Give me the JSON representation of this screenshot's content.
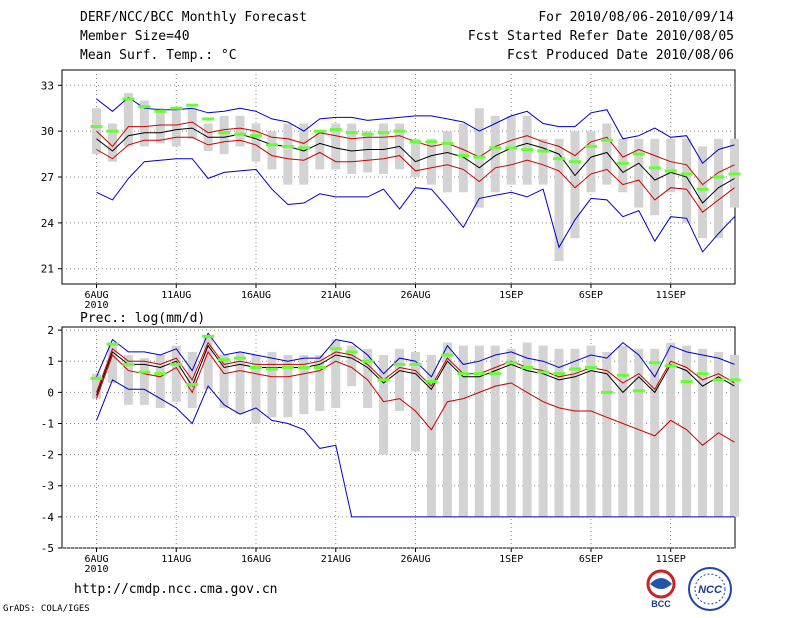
{
  "header": {
    "title": "DERF/NCC/BCC Monthly Forecast",
    "member_size": "Member Size=40",
    "variable": "Mean Surf. Temp.: °C",
    "period": "For 2010/08/06-2010/09/14",
    "started": "Fcst Started Refer Date 2010/08/05",
    "produced": "Fcst Produced Date 2010/08/06"
  },
  "footer": {
    "url": "http://cmdp.ncc.cma.gov.cn",
    "credit": "GrADS: COLA/IGES",
    "logo_bcc": "BCC",
    "logo_ncc": "NCC"
  },
  "colors": {
    "ensemble_mean": "#000000",
    "spread": "#cc0000",
    "extreme": "#0000cc",
    "bar": "#d3d3d3",
    "observed": "#66ff33"
  },
  "chart_data": [
    {
      "type": "line",
      "title": "Mean Surf. Temp.: °C",
      "x_start": "2010-08-06",
      "x_ticks": [
        "6AUG",
        "11AUG",
        "16AUG",
        "21AUG",
        "26AUG",
        "1SEP",
        "6SEP",
        "11SEP"
      ],
      "x_tick_days": [
        0,
        5,
        10,
        15,
        20,
        26,
        31,
        36
      ],
      "x_year": "2010",
      "ylim": [
        20,
        34
      ],
      "y_ticks": [
        21,
        24,
        27,
        30,
        33
      ],
      "series": [
        {
          "name": "max",
          "color": "#0000cc",
          "values": [
            32.1,
            31.3,
            32.2,
            31.5,
            31.4,
            31.4,
            31.5,
            31.2,
            31.3,
            31.5,
            31.3,
            30.8,
            30.6,
            30.0,
            30.8,
            30.9,
            30.9,
            30.7,
            30.8,
            30.9,
            31.0,
            31.0,
            30.8,
            30.6,
            30.0,
            30.5,
            31.0,
            31.3,
            30.5,
            30.3,
            30.3,
            31.2,
            31.4,
            29.5,
            29.7,
            30.2,
            29.6,
            29.7,
            27.9,
            28.8,
            29.1
          ]
        },
        {
          "name": "upper",
          "color": "#cc0000",
          "values": [
            30.0,
            29.0,
            30.3,
            30.3,
            30.4,
            30.4,
            30.6,
            29.9,
            30.1,
            30.2,
            30.0,
            29.6,
            29.5,
            29.2,
            29.9,
            29.7,
            29.5,
            29.6,
            29.6,
            29.7,
            29.3,
            29.0,
            29.2,
            28.8,
            28.3,
            29.0,
            29.4,
            29.7,
            29.3,
            29.0,
            28.4,
            29.3,
            29.6,
            28.3,
            28.8,
            28.4,
            28.0,
            27.8,
            26.5,
            27.3,
            27.8
          ]
        },
        {
          "name": "mean",
          "color": "#000000",
          "values": [
            29.5,
            28.7,
            29.7,
            29.9,
            29.9,
            30.1,
            30.2,
            29.6,
            29.6,
            29.8,
            29.5,
            29.1,
            29.0,
            28.7,
            29.2,
            28.9,
            28.7,
            28.8,
            28.8,
            29.0,
            28.0,
            28.4,
            28.6,
            28.3,
            27.6,
            28.4,
            28.9,
            29.2,
            28.9,
            28.5,
            27.1,
            28.3,
            28.6,
            27.3,
            27.9,
            26.8,
            27.3,
            27.0,
            25.3,
            26.3,
            26.9
          ]
        },
        {
          "name": "lower",
          "color": "#cc0000",
          "values": [
            28.8,
            28.2,
            29.1,
            29.4,
            29.4,
            29.6,
            29.6,
            29.1,
            29.3,
            29.4,
            29.1,
            28.4,
            28.2,
            28.1,
            28.6,
            28.0,
            28.0,
            28.1,
            28.2,
            28.4,
            27.4,
            27.6,
            27.8,
            27.5,
            26.7,
            27.6,
            27.8,
            28.1,
            27.8,
            27.4,
            26.3,
            27.2,
            27.5,
            26.5,
            26.8,
            25.5,
            26.3,
            26.2,
            24.7,
            25.5,
            26.3
          ]
        },
        {
          "name": "min",
          "color": "#0000cc",
          "values": [
            26.0,
            25.5,
            26.9,
            28.0,
            28.1,
            28.2,
            28.2,
            26.9,
            27.3,
            27.4,
            27.5,
            26.2,
            25.2,
            25.3,
            25.9,
            25.7,
            25.7,
            25.7,
            26.2,
            24.9,
            26.3,
            26.2,
            25.0,
            23.7,
            25.6,
            25.8,
            26.0,
            25.7,
            26.2,
            22.4,
            24.2,
            25.6,
            25.5,
            24.4,
            24.8,
            22.8,
            24.4,
            24.3,
            22.1,
            23.3,
            24.4
          ]
        }
      ],
      "bars": {
        "low": [
          28.5,
          28.0,
          29.0,
          29.0,
          29.2,
          29.0,
          29.5,
          28.7,
          28.5,
          29.0,
          28.0,
          27.5,
          26.5,
          26.5,
          27.5,
          27.5,
          27.2,
          27.3,
          27.2,
          27.5,
          27.0,
          26.5,
          26.0,
          26.0,
          25.0,
          26.0,
          26.5,
          26.5,
          26.5,
          21.5,
          23.0,
          26.0,
          26.5,
          26.0,
          25.0,
          24.5,
          26.0,
          24.0,
          23.0,
          23.0,
          25.0
        ],
        "high": [
          31.5,
          30.5,
          32.5,
          32.0,
          31.5,
          31.5,
          31.5,
          30.5,
          31.0,
          31.0,
          30.5,
          30.0,
          30.5,
          30.5,
          30.0,
          30.5,
          30.5,
          30.0,
          30.5,
          30.5,
          29.5,
          29.5,
          30.0,
          30.5,
          31.5,
          31.0,
          31.0,
          31.0,
          29.5,
          29.5,
          30.0,
          30.0,
          30.5,
          29.5,
          29.5,
          29.5,
          29.5,
          29.5,
          29.0,
          29.5,
          29.5
        ]
      },
      "observed": [
        30.3,
        30.0,
        32.1,
        31.6,
        31.3,
        31.5,
        31.7,
        30.8,
        29.9,
        29.8,
        29.7,
        29.1,
        29.0,
        28.9,
        30.0,
        30.1,
        29.9,
        29.8,
        29.9,
        30.0,
        29.3,
        29.3,
        29.2,
        28.4,
        28.3,
        28.9,
        28.9,
        28.8,
        28.7,
        28.2,
        28.0,
        29.0,
        29.4,
        27.9,
        28.5,
        27.6,
        27.4,
        27.2,
        26.2,
        27.0,
        27.2
      ]
    },
    {
      "type": "line",
      "title": "Prec.: log(mm/d)",
      "x_start": "2010-08-06",
      "x_ticks": [
        "6AUG",
        "11AUG",
        "16AUG",
        "21AUG",
        "26AUG",
        "1SEP",
        "6SEP",
        "11SEP"
      ],
      "x_tick_days": [
        0,
        5,
        10,
        15,
        20,
        26,
        31,
        36
      ],
      "x_year": "2010",
      "ylim": [
        -5,
        2.1
      ],
      "y_ticks": [
        -5,
        -4,
        -3,
        -2,
        -1,
        0,
        1,
        2
      ],
      "series": [
        {
          "name": "max",
          "color": "#0000cc",
          "values": [
            0.5,
            1.7,
            1.3,
            1.3,
            1.2,
            1.4,
            0.7,
            1.9,
            1.2,
            1.3,
            1.2,
            1.1,
            1.0,
            1.1,
            1.1,
            1.7,
            1.6,
            1.2,
            0.6,
            1.1,
            1.0,
            0.5,
            1.5,
            0.9,
            1.0,
            1.2,
            1.3,
            1.1,
            1.0,
            0.8,
            1.0,
            1.2,
            1.1,
            1.6,
            1.2,
            0.5,
            1.5,
            1.3,
            1.2,
            1.1,
            0.9
          ]
        },
        {
          "name": "upper",
          "color": "#cc0000",
          "values": [
            0.0,
            1.4,
            1.0,
            1.0,
            0.9,
            1.1,
            0.4,
            1.6,
            0.9,
            1.0,
            0.9,
            0.9,
            0.9,
            0.9,
            1.0,
            1.3,
            1.2,
            0.9,
            0.4,
            0.8,
            0.7,
            0.2,
            1.1,
            0.6,
            0.6,
            0.8,
            1.0,
            0.8,
            0.7,
            0.5,
            0.6,
            0.8,
            0.7,
            0.3,
            0.6,
            0.1,
            1.0,
            0.8,
            0.4,
            0.6,
            0.3
          ]
        },
        {
          "name": "mean",
          "color": "#000000",
          "values": [
            -0.1,
            1.3,
            0.9,
            0.9,
            0.8,
            1.0,
            0.2,
            1.5,
            0.8,
            0.9,
            0.8,
            0.8,
            0.8,
            0.8,
            0.9,
            1.2,
            1.1,
            0.8,
            0.3,
            0.7,
            0.6,
            0.1,
            1.0,
            0.5,
            0.5,
            0.7,
            0.9,
            0.7,
            0.6,
            0.4,
            0.5,
            0.7,
            0.6,
            0.0,
            0.5,
            0.0,
            0.9,
            0.7,
            0.2,
            0.5,
            0.2
          ]
        },
        {
          "name": "lower",
          "color": "#cc0000",
          "values": [
            -0.2,
            1.2,
            0.7,
            0.6,
            0.5,
            0.8,
            0.0,
            1.3,
            0.6,
            0.7,
            0.6,
            0.5,
            0.5,
            0.6,
            0.7,
            1.0,
            0.8,
            0.4,
            -0.3,
            -0.2,
            -0.6,
            -1.2,
            -0.3,
            -0.2,
            0.0,
            0.2,
            0.3,
            0.0,
            -0.3,
            -0.5,
            -0.6,
            -0.6,
            -0.8,
            -1.0,
            -1.2,
            -1.4,
            -0.9,
            -1.2,
            -1.7,
            -1.3,
            -1.6
          ]
        },
        {
          "name": "min",
          "color": "#0000cc",
          "values": [
            -0.9,
            0.4,
            0.1,
            0.1,
            -0.2,
            -0.5,
            -1.0,
            0.2,
            -0.4,
            -0.7,
            -0.5,
            -0.9,
            -1.0,
            -1.2,
            -1.8,
            -1.7,
            -4.0,
            -4.0,
            -4.0,
            -4.0,
            -4.0,
            -4.0,
            -4.0,
            -4.0,
            -4.0,
            -4.0,
            -4.0,
            -4.0,
            -4.0,
            -4.0,
            -4.0,
            -4.0,
            -4.0,
            -4.0,
            -4.0,
            -4.0,
            -4.0,
            -4.0,
            -4.0,
            -4.0,
            -4.0
          ]
        }
      ],
      "bars": {
        "low": [
          -0.2,
          0.3,
          -0.4,
          -0.4,
          -0.5,
          -0.3,
          -0.5,
          0.1,
          -0.5,
          -0.7,
          -1.0,
          -0.8,
          -0.8,
          -0.7,
          -0.6,
          -0.5,
          0.2,
          -0.5,
          -2.0,
          -0.6,
          -1.9,
          -4.0,
          -4.0,
          -4.0,
          -4.0,
          -4.0,
          -4.0,
          -4.0,
          -4.0,
          -4.0,
          -4.0,
          -4.0,
          -4.0,
          -4.0,
          -4.0,
          -4.0,
          -4.0,
          -4.0,
          -4.0,
          -4.0,
          -4.0
        ],
        "high": [
          0.6,
          1.6,
          1.2,
          1.1,
          1.2,
          1.5,
          1.3,
          1.8,
          1.2,
          1.3,
          1.2,
          1.3,
          1.2,
          1.2,
          1.2,
          1.7,
          1.5,
          1.4,
          1.2,
          1.4,
          1.3,
          1.2,
          1.6,
          1.5,
          1.5,
          1.5,
          1.4,
          1.6,
          1.5,
          1.4,
          1.4,
          1.5,
          1.3,
          1.5,
          1.4,
          1.4,
          1.6,
          1.5,
          1.4,
          1.3,
          1.2
        ]
      },
      "observed": [
        0.45,
        1.55,
        0.9,
        0.65,
        0.6,
        0.9,
        0.25,
        1.8,
        1.05,
        1.1,
        0.8,
        0.75,
        0.8,
        0.8,
        0.8,
        1.4,
        1.3,
        1.0,
        0.4,
        0.9,
        0.9,
        0.35,
        1.2,
        0.6,
        0.6,
        0.6,
        0.95,
        0.8,
        0.65,
        0.6,
        0.75,
        0.8,
        0.0,
        0.55,
        0.05,
        0.95,
        0.85,
        0.35,
        0.6,
        0.4,
        0.4
      ]
    }
  ]
}
